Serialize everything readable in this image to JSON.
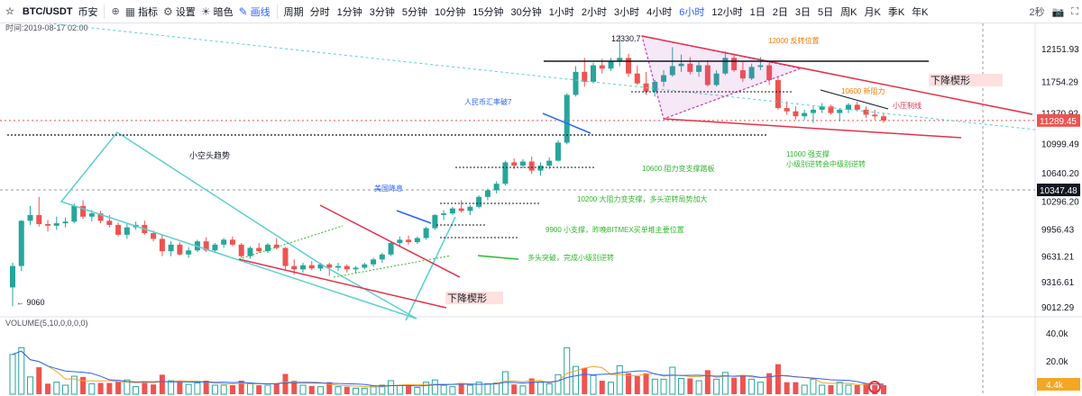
{
  "toolbar": {
    "symbol": "BTC/USDT",
    "exchange": "币安",
    "indicators_label": "指标",
    "settings_label": "设置",
    "theme_label": "暗色",
    "draw_label": "画线",
    "period_label": "周期",
    "intervals": [
      "分时",
      "1分钟",
      "3分钟",
      "5分钟",
      "10分钟",
      "15分钟",
      "30分钟",
      "1小时",
      "2小时",
      "3小时",
      "4小时",
      "6小时",
      "12小时",
      "1日",
      "2日",
      "3日",
      "5日",
      "周K",
      "月K",
      "季K",
      "年K"
    ],
    "active_interval": "6小时",
    "right_text": "2秒"
  },
  "chart_data": {
    "type": "candlestick",
    "time_label": "时间:2019-08-17 02:00",
    "price_ticks": [
      "12151.93",
      "11754.29",
      "11370.92",
      "10999.49",
      "10640.20",
      "10296.20",
      "9956.43",
      "9631.21",
      "9316.61",
      "9012.29"
    ],
    "current_price": "11289.45",
    "marker_price": "10347.48",
    "high_label": "12330.7",
    "low_label": "9060",
    "volume_label": "VOLUME(5,10,0,0,0,0)",
    "volume_ticks": [
      "40.0k",
      "20.0k",
      "4.4k"
    ],
    "candles": [
      {
        "o": 9260,
        "h": 9560,
        "l": 9030,
        "c": 9520
      },
      {
        "o": 9520,
        "h": 10080,
        "l": 9460,
        "c": 10070
      },
      {
        "o": 10070,
        "h": 10250,
        "l": 10020,
        "c": 10140
      },
      {
        "o": 10140,
        "h": 10360,
        "l": 10000,
        "c": 10030
      },
      {
        "o": 10030,
        "h": 10080,
        "l": 9940,
        "c": 10010
      },
      {
        "o": 10010,
        "h": 10120,
        "l": 9960,
        "c": 10040
      },
      {
        "o": 10040,
        "h": 10110,
        "l": 9990,
        "c": 10060
      },
      {
        "o": 10060,
        "h": 10280,
        "l": 10040,
        "c": 10250
      },
      {
        "o": 10250,
        "h": 10320,
        "l": 10090,
        "c": 10120
      },
      {
        "o": 10120,
        "h": 10200,
        "l": 10060,
        "c": 10160
      },
      {
        "o": 10160,
        "h": 10190,
        "l": 10040,
        "c": 10070
      },
      {
        "o": 10070,
        "h": 10140,
        "l": 9990,
        "c": 10020
      },
      {
        "o": 10020,
        "h": 10050,
        "l": 9880,
        "c": 9900
      },
      {
        "o": 9900,
        "h": 10040,
        "l": 9850,
        "c": 9990
      },
      {
        "o": 9990,
        "h": 10060,
        "l": 9960,
        "c": 10020
      },
      {
        "o": 10020,
        "h": 10070,
        "l": 9900,
        "c": 9920
      },
      {
        "o": 9920,
        "h": 9950,
        "l": 9820,
        "c": 9850
      },
      {
        "o": 9850,
        "h": 9900,
        "l": 9640,
        "c": 9700
      },
      {
        "o": 9700,
        "h": 9820,
        "l": 9640,
        "c": 9780
      },
      {
        "o": 9780,
        "h": 9810,
        "l": 9650,
        "c": 9660
      },
      {
        "o": 9660,
        "h": 9750,
        "l": 9620,
        "c": 9710
      },
      {
        "o": 9710,
        "h": 9840,
        "l": 9690,
        "c": 9820
      },
      {
        "o": 9820,
        "h": 9870,
        "l": 9690,
        "c": 9710
      },
      {
        "o": 9710,
        "h": 9800,
        "l": 9680,
        "c": 9780
      },
      {
        "o": 9780,
        "h": 9860,
        "l": 9740,
        "c": 9840
      },
      {
        "o": 9840,
        "h": 9880,
        "l": 9760,
        "c": 9780
      },
      {
        "o": 9780,
        "h": 9800,
        "l": 9620,
        "c": 9640
      },
      {
        "o": 9640,
        "h": 9760,
        "l": 9610,
        "c": 9740
      },
      {
        "o": 9740,
        "h": 9800,
        "l": 9680,
        "c": 9700
      },
      {
        "o": 9700,
        "h": 9800,
        "l": 9680,
        "c": 9780
      },
      {
        "o": 9780,
        "h": 9860,
        "l": 9720,
        "c": 9740
      },
      {
        "o": 9740,
        "h": 9750,
        "l": 9480,
        "c": 9520
      },
      {
        "o": 9520,
        "h": 9600,
        "l": 9420,
        "c": 9480
      },
      {
        "o": 9480,
        "h": 9560,
        "l": 9440,
        "c": 9530
      },
      {
        "o": 9530,
        "h": 9580,
        "l": 9470,
        "c": 9490
      },
      {
        "o": 9490,
        "h": 9560,
        "l": 9460,
        "c": 9540
      },
      {
        "o": 9540,
        "h": 9560,
        "l": 9400,
        "c": 9500
      },
      {
        "o": 9500,
        "h": 9560,
        "l": 9460,
        "c": 9520
      },
      {
        "o": 9520,
        "h": 9540,
        "l": 9440,
        "c": 9480
      },
      {
        "o": 9480,
        "h": 9520,
        "l": 9440,
        "c": 9500
      },
      {
        "o": 9500,
        "h": 9560,
        "l": 9480,
        "c": 9540
      },
      {
        "o": 9540,
        "h": 9620,
        "l": 9510,
        "c": 9600
      },
      {
        "o": 9600,
        "h": 9680,
        "l": 9560,
        "c": 9660
      },
      {
        "o": 9660,
        "h": 9820,
        "l": 9640,
        "c": 9800
      },
      {
        "o": 9800,
        "h": 9880,
        "l": 9760,
        "c": 9840
      },
      {
        "o": 9840,
        "h": 9890,
        "l": 9780,
        "c": 9810
      },
      {
        "o": 9810,
        "h": 9880,
        "l": 9790,
        "c": 9860
      },
      {
        "o": 9860,
        "h": 10000,
        "l": 9840,
        "c": 9980
      },
      {
        "o": 9980,
        "h": 10150,
        "l": 9960,
        "c": 10140
      },
      {
        "o": 10140,
        "h": 10200,
        "l": 10080,
        "c": 10160
      },
      {
        "o": 10160,
        "h": 10240,
        "l": 10140,
        "c": 10220
      },
      {
        "o": 10220,
        "h": 10320,
        "l": 10170,
        "c": 10190
      },
      {
        "o": 10190,
        "h": 10260,
        "l": 10140,
        "c": 10240
      },
      {
        "o": 10240,
        "h": 10380,
        "l": 10220,
        "c": 10360
      },
      {
        "o": 10360,
        "h": 10460,
        "l": 10320,
        "c": 10440
      },
      {
        "o": 10440,
        "h": 10550,
        "l": 10400,
        "c": 10520
      },
      {
        "o": 10520,
        "h": 10800,
        "l": 10500,
        "c": 10780
      },
      {
        "o": 10780,
        "h": 10830,
        "l": 10700,
        "c": 10740
      },
      {
        "o": 10740,
        "h": 10820,
        "l": 10710,
        "c": 10790
      },
      {
        "o": 10790,
        "h": 10850,
        "l": 10640,
        "c": 10680
      },
      {
        "o": 10680,
        "h": 10780,
        "l": 10620,
        "c": 10740
      },
      {
        "o": 10740,
        "h": 10840,
        "l": 10700,
        "c": 10800
      },
      {
        "o": 10800,
        "h": 11050,
        "l": 10790,
        "c": 11020
      },
      {
        "o": 11020,
        "h": 11620,
        "l": 11000,
        "c": 11600
      },
      {
        "o": 11600,
        "h": 11950,
        "l": 11580,
        "c": 11880
      },
      {
        "o": 11880,
        "h": 12050,
        "l": 11700,
        "c": 11760
      },
      {
        "o": 11760,
        "h": 11990,
        "l": 11740,
        "c": 11960
      },
      {
        "o": 11960,
        "h": 12040,
        "l": 11860,
        "c": 11920
      },
      {
        "o": 11920,
        "h": 12050,
        "l": 11890,
        "c": 12010
      },
      {
        "o": 12010,
        "h": 12330,
        "l": 11950,
        "c": 12050
      },
      {
        "o": 12050,
        "h": 12100,
        "l": 11820,
        "c": 11860
      },
      {
        "o": 11860,
        "h": 11960,
        "l": 11720,
        "c": 11740
      },
      {
        "o": 11740,
        "h": 11880,
        "l": 11600,
        "c": 11640
      },
      {
        "o": 11640,
        "h": 11780,
        "l": 11580,
        "c": 11760
      },
      {
        "o": 11760,
        "h": 11900,
        "l": 11700,
        "c": 11840
      },
      {
        "o": 11840,
        "h": 12180,
        "l": 11820,
        "c": 11950
      },
      {
        "o": 11950,
        "h": 12090,
        "l": 11880,
        "c": 11980
      },
      {
        "o": 11980,
        "h": 12060,
        "l": 11850,
        "c": 11880
      },
      {
        "o": 11880,
        "h": 12000,
        "l": 11820,
        "c": 11960
      },
      {
        "o": 11960,
        "h": 12020,
        "l": 11700,
        "c": 11720
      },
      {
        "o": 11720,
        "h": 11900,
        "l": 11700,
        "c": 11860
      },
      {
        "o": 11860,
        "h": 12130,
        "l": 11840,
        "c": 12050
      },
      {
        "o": 12050,
        "h": 12100,
        "l": 11880,
        "c": 11900
      },
      {
        "o": 11900,
        "h": 12000,
        "l": 11760,
        "c": 11800
      },
      {
        "o": 11800,
        "h": 11980,
        "l": 11780,
        "c": 11940
      },
      {
        "o": 11940,
        "h": 12060,
        "l": 11900,
        "c": 11960
      },
      {
        "o": 11960,
        "h": 12000,
        "l": 11720,
        "c": 11780
      },
      {
        "o": 11780,
        "h": 11820,
        "l": 11420,
        "c": 11440
      },
      {
        "o": 11440,
        "h": 11520,
        "l": 11360,
        "c": 11400
      },
      {
        "o": 11400,
        "h": 11460,
        "l": 11300,
        "c": 11340
      },
      {
        "o": 11340,
        "h": 11420,
        "l": 11300,
        "c": 11380
      },
      {
        "o": 11380,
        "h": 11460,
        "l": 11260,
        "c": 11420
      },
      {
        "o": 11420,
        "h": 11500,
        "l": 11380,
        "c": 11460
      },
      {
        "o": 11460,
        "h": 11480,
        "l": 11360,
        "c": 11380
      },
      {
        "o": 11380,
        "h": 11440,
        "l": 11280,
        "c": 11420
      },
      {
        "o": 11420,
        "h": 11500,
        "l": 11380,
        "c": 11480
      },
      {
        "o": 11480,
        "h": 11520,
        "l": 11400,
        "c": 11420
      },
      {
        "o": 11420,
        "h": 11460,
        "l": 11320,
        "c": 11360
      },
      {
        "o": 11360,
        "h": 11420,
        "l": 11300,
        "c": 11340
      },
      {
        "o": 11340,
        "h": 11380,
        "l": 11260,
        "c": 11289
      }
    ],
    "annotations": {
      "small_bear_trend": "小空头趋势",
      "us_rate_cut": "美国降息",
      "rmb_rate": "人民币汇率破7",
      "level_12000": "12000  反转位置",
      "level_10600_resist": "10600  新阻力",
      "small_pressure": "小压制线",
      "falling_wedge": "下降楔形",
      "falling_wedge_2": "下降楔形",
      "level_11000": "11000  强支撑",
      "reversal_note": "小级别逆转会中级别逆转",
      "level_10600_support": "10600  阻力变支撑踏板",
      "level_10200": "10200   大阻力变支撑，多头逆转局势加大",
      "level_9900": "9900  小支撑，昨晚BITMEX买单堆主要位置",
      "bull_breakout": "多头突破，完成小级别逆转"
    },
    "colors": {
      "up": "#26a69a",
      "down": "#ef5350",
      "wedge": "#5bd0d0",
      "red_line": "#e5314a",
      "purple": "#c040c0"
    }
  }
}
